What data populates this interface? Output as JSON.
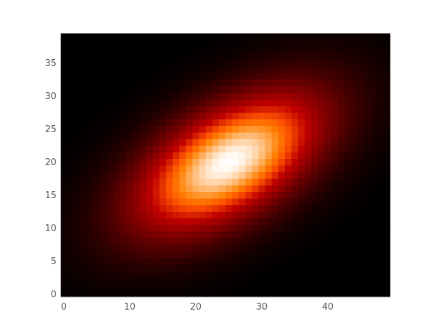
{
  "chart_data": {
    "type": "heatmap",
    "title": "",
    "xlabel": "",
    "ylabel": "",
    "xlim": [
      -0.5,
      49.5
    ],
    "ylim": [
      -0.5,
      39.5
    ],
    "x_ticks": [
      0,
      10,
      20,
      30,
      40
    ],
    "y_ticks": [
      0,
      5,
      10,
      15,
      20,
      25,
      30,
      35
    ],
    "x_tick_labels": [
      "0",
      "10",
      "20",
      "30",
      "40"
    ],
    "y_tick_labels": [
      "0",
      "5",
      "10",
      "15",
      "20",
      "25",
      "30",
      "35"
    ],
    "grid": false,
    "colormap": "gist_heat",
    "colors": {
      "frame": "#ffffff",
      "tick_label": "#555555"
    },
    "grid_size": {
      "nx": 50,
      "ny": 40
    },
    "distribution": {
      "kind": "bivariate-gaussian",
      "mean": [
        25,
        20
      ],
      "sigma_x": 10,
      "sigma_y": 7.5,
      "correlation": 0.55
    }
  }
}
